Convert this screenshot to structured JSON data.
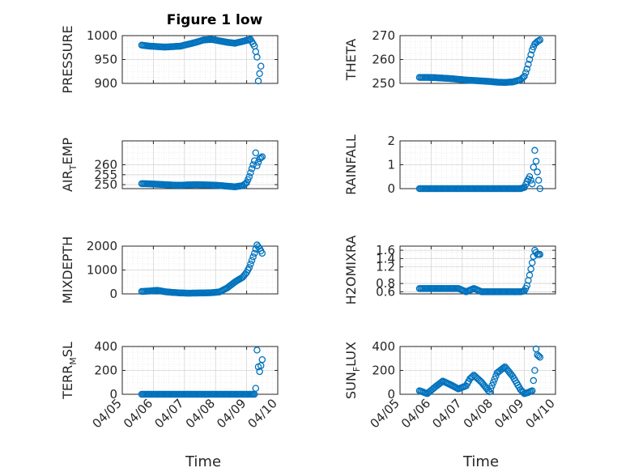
{
  "figure_title": "Figure 1 low",
  "colors": {
    "marker": "#0072BD",
    "axis": "#262626",
    "grid": "#d6d6d6",
    "minor_grid": "#e8e8e8"
  },
  "chart_data": [
    {
      "type": "scatter",
      "ylabel": "PRESSURE",
      "ylabel_main": "PRESSURE",
      "ylabel_sub": "",
      "ylabel_tail": "",
      "ylim": [
        900,
        1000
      ],
      "yticks": [
        "900",
        "950",
        "1000"
      ],
      "xlim": [
        "04/05",
        "04/10"
      ],
      "x": [
        "04/05 15:00",
        "04/05 21:00",
        "04/06 03:00",
        "04/06 09:00",
        "04/06 15:00",
        "04/06 21:00",
        "04/07 03:00",
        "04/07 09:00",
        "04/07 15:00",
        "04/07 21:00",
        "04/08 03:00",
        "04/08 09:00",
        "04/08 15:00",
        "04/08 21:00",
        "04/09 03:00",
        "04/09 06:00",
        "04/09 08:00",
        "04/09 09:00",
        "04/09 11:00"
      ],
      "y": [
        980,
        978,
        977,
        976,
        977,
        978,
        982,
        986,
        991,
        992,
        989,
        986,
        984,
        988,
        992,
        978,
        955,
        905,
        936
      ]
    },
    {
      "type": "scatter",
      "ylabel": "THETA",
      "ylabel_main": "THETA",
      "ylabel_sub": "",
      "ylabel_tail": "",
      "ylim": [
        250,
        270
      ],
      "yticks": [
        "250",
        "260",
        "270"
      ],
      "xlim": [
        "04/05",
        "04/10"
      ],
      "x": [
        "04/05 15:00",
        "04/05 21:00",
        "04/06 03:00",
        "04/06 09:00",
        "04/06 15:00",
        "04/06 21:00",
        "04/07 03:00",
        "04/07 09:00",
        "04/07 15:00",
        "04/07 21:00",
        "04/08 03:00",
        "04/08 09:00",
        "04/08 15:00",
        "04/08 21:00",
        "04/09 00:00",
        "04/09 02:00",
        "04/09 04:00",
        "04/09 06:00",
        "04/09 08:00",
        "04/09 10:00",
        "04/09 12:00"
      ],
      "y": [
        252.5,
        252.5,
        252.4,
        252.2,
        252,
        251.7,
        251.4,
        251.2,
        251,
        250.8,
        250.5,
        250.4,
        250.6,
        251.5,
        253,
        256,
        260,
        264,
        266.5,
        267.5,
        268.2
      ]
    },
    {
      "type": "scatter",
      "ylabel": "AIR_TEMP",
      "ylabel_main": "AIR",
      "ylabel_sub": "T",
      "ylabel_tail": "EMP",
      "ylim": [
        248,
        272
      ],
      "yticks": [
        "250",
        "255",
        "260"
      ],
      "xlim": [
        "04/05",
        "04/10"
      ],
      "x": [
        "04/05 15:00",
        "04/05 21:00",
        "04/06 03:00",
        "04/06 09:00",
        "04/06 15:00",
        "04/06 21:00",
        "04/07 03:00",
        "04/07 09:00",
        "04/07 15:00",
        "04/07 21:00",
        "04/08 03:00",
        "04/08 09:00",
        "04/08 15:00",
        "04/08 21:00",
        "04/09 00:00",
        "04/09 02:00",
        "04/09 04:00",
        "04/09 06:00",
        "04/09 07:00",
        "04/09 08:00",
        "04/09 10:00",
        "04/09 12:00"
      ],
      "y": [
        250.5,
        250.4,
        250.2,
        250,
        249.8,
        249.7,
        249.9,
        250,
        249.9,
        249.8,
        249.6,
        249.2,
        248.9,
        249.5,
        251,
        254,
        258,
        262,
        266,
        259.5,
        263,
        264
      ]
    },
    {
      "type": "scatter",
      "ylabel": "RAINFALL",
      "ylabel_main": "RAINFALL",
      "ylabel_sub": "",
      "ylabel_tail": "",
      "ylim": [
        0,
        2
      ],
      "yticks": [
        "0",
        "1",
        "2"
      ],
      "xlim": [
        "04/05",
        "04/10"
      ],
      "x": [
        "04/05 15:00",
        "04/05 21:00",
        "04/06 03:00",
        "04/06 09:00",
        "04/06 15:00",
        "04/06 21:00",
        "04/07 03:00",
        "04/07 09:00",
        "04/07 15:00",
        "04/07 21:00",
        "04/08 03:00",
        "04/08 09:00",
        "04/08 15:00",
        "04/08 21:00",
        "04/09 00:00",
        "04/09 02:00",
        "04/09 04:00",
        "04/09 06:00",
        "04/09 08:00",
        "04/09 10:00",
        "04/09 12:00"
      ],
      "y": [
        0,
        0,
        0,
        0,
        0,
        0,
        0,
        0,
        0,
        0,
        0,
        0,
        0,
        0,
        0.05,
        0.3,
        0.5,
        0.2,
        1.6,
        0.7,
        0
      ]
    },
    {
      "type": "scatter",
      "ylabel": "MIXDEPTH",
      "ylabel_main": "MIXDEPTH",
      "ylabel_sub": "",
      "ylabel_tail": "",
      "ylim": [
        0,
        2000
      ],
      "yticks": [
        "0",
        "1000",
        "2000"
      ],
      "xlim": [
        "04/05",
        "04/10"
      ],
      "x": [
        "04/05 15:00",
        "04/05 21:00",
        "04/06 03:00",
        "04/06 09:00",
        "04/06 15:00",
        "04/06 21:00",
        "04/07 03:00",
        "04/07 09:00",
        "04/07 15:00",
        "04/07 21:00",
        "04/08 03:00",
        "04/08 09:00",
        "04/08 15:00",
        "04/08 21:00",
        "04/09 00:00",
        "04/09 02:00",
        "04/09 04:00",
        "04/09 06:00",
        "04/09 08:00",
        "04/09 10:00",
        "04/09 12:00"
      ],
      "y": [
        100,
        120,
        150,
        90,
        60,
        40,
        30,
        35,
        40,
        50,
        80,
        250,
        500,
        700,
        900,
        1100,
        1400,
        1700,
        2050,
        1900,
        1700
      ]
    },
    {
      "type": "scatter",
      "ylabel": "H2OMIXRA",
      "ylabel_main": "H2OMIXRA",
      "ylabel_sub": "",
      "ylabel_tail": "",
      "ylim": [
        0.55,
        1.7
      ],
      "yticks": [
        "0.6",
        "0.8",
        "1.2",
        "1.4",
        "1.6"
      ],
      "xlim": [
        "04/05",
        "04/10"
      ],
      "x": [
        "04/05 15:00",
        "04/05 21:00",
        "04/06 03:00",
        "04/06 09:00",
        "04/06 15:00",
        "04/06 21:00",
        "04/07 03:00",
        "04/07 09:00",
        "04/07 15:00",
        "04/07 21:00",
        "04/08 03:00",
        "04/08 09:00",
        "04/08 15:00",
        "04/08 21:00",
        "04/09 00:00",
        "04/09 02:00",
        "04/09 04:00",
        "04/09 06:00",
        "04/09 08:00",
        "04/09 10:00",
        "04/09 12:00"
      ],
      "y": [
        0.68,
        0.68,
        0.68,
        0.68,
        0.68,
        0.68,
        0.6,
        0.68,
        0.6,
        0.6,
        0.6,
        0.6,
        0.6,
        0.6,
        0.62,
        0.75,
        1.0,
        1.3,
        1.6,
        1.5,
        1.5
      ]
    },
    {
      "type": "scatter",
      "ylabel": "TERR_MSL",
      "ylabel_main": "TERR",
      "ylabel_sub": "M",
      "ylabel_tail": "SL",
      "ylim": [
        0,
        400
      ],
      "yticks": [
        "0",
        "200",
        "400"
      ],
      "xlim": [
        "04/05",
        "04/10"
      ],
      "x": [
        "04/05 15:00",
        "04/06 00:00",
        "04/06 12:00",
        "04/07 00:00",
        "04/07 12:00",
        "04/08 00:00",
        "04/08 12:00",
        "04/09 00:00",
        "04/09 06:00",
        "04/09 07:00",
        "04/09 08:00",
        "04/09 09:00",
        "04/09 10:00",
        "04/09 12:00"
      ],
      "y": [
        0,
        0,
        0,
        0,
        0,
        0,
        0,
        0,
        0,
        50,
        370,
        230,
        190,
        290
      ]
    },
    {
      "type": "scatter",
      "ylabel": "SUN_FLUX",
      "ylabel_main": "SUN",
      "ylabel_sub": "F",
      "ylabel_tail": "LUX",
      "ylim": [
        0,
        400
      ],
      "yticks": [
        "0",
        "200",
        "400"
      ],
      "xlim": [
        "04/05",
        "04/10"
      ],
      "x": [
        "04/05 15:00",
        "04/05 21:00",
        "04/06 03:00",
        "04/06 09:00",
        "04/06 15:00",
        "04/06 21:00",
        "04/07 03:00",
        "04/07 06:00",
        "04/07 09:00",
        "04/07 15:00",
        "04/07 21:00",
        "04/08 03:00",
        "04/08 09:00",
        "04/08 15:00",
        "04/08 21:00",
        "04/09 00:00",
        "04/09 03:00",
        "04/09 06:00",
        "04/09 08:00",
        "04/09 09:00",
        "04/09 10:00",
        "04/09 12:00"
      ],
      "y": [
        30,
        5,
        60,
        110,
        80,
        45,
        70,
        130,
        160,
        100,
        20,
        180,
        230,
        150,
        40,
        5,
        15,
        30,
        200,
        380,
        330,
        310
      ]
    }
  ],
  "xticks": [
    "04/05",
    "04/06",
    "04/07",
    "04/08",
    "04/09",
    "04/10"
  ],
  "xlabel_left": "Time",
  "xlabel_right": "Time"
}
